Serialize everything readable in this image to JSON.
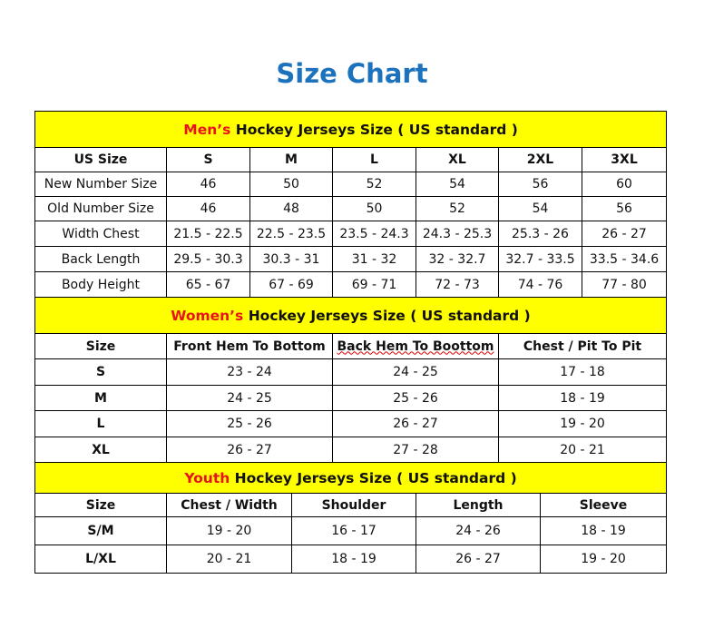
{
  "title": "Size Chart",
  "men": {
    "band_highlight": "Men’s",
    "band_rest": " Hockey Jerseys Size ( US standard )",
    "headers": [
      "US Size",
      "S",
      "M",
      "L",
      "XL",
      "2XL",
      "3XL"
    ],
    "rows": [
      [
        "New Number Size",
        "46",
        "50",
        "52",
        "54",
        "56",
        "60"
      ],
      [
        "Old Number Size",
        "46",
        "48",
        "50",
        "52",
        "54",
        "56"
      ],
      [
        "Width Chest",
        "21.5 - 22.5",
        "22.5 - 23.5",
        "23.5 - 24.3",
        "24.3 - 25.3",
        "25.3 - 26",
        "26 - 27"
      ],
      [
        "Back Length",
        "29.5 - 30.3",
        "30.3 - 31",
        "31 - 32",
        "32 - 32.7",
        "32.7 - 33.5",
        "33.5 - 34.6"
      ],
      [
        "Body Height",
        "65 - 67",
        "67 - 69",
        "69 - 71",
        "72 - 73",
        "74 - 76",
        "77 - 80"
      ]
    ]
  },
  "women": {
    "band_highlight": "Women’s",
    "band_rest": " Hockey Jerseys Size ( US standard )",
    "headers": [
      "Size",
      "Front Hem To Bottom",
      "Back Hem To Boottom",
      "Chest / Pit To Pit"
    ],
    "rows": [
      [
        "S",
        "23 - 24",
        "24 - 25",
        "17 - 18"
      ],
      [
        "M",
        "24 - 25",
        "25 - 26",
        "18 - 19"
      ],
      [
        "L",
        "25 - 26",
        "26 - 27",
        "19 - 20"
      ],
      [
        "XL",
        "26 - 27",
        "27 - 28",
        "20 - 21"
      ]
    ]
  },
  "youth": {
    "band_highlight": "Youth",
    "band_rest": " Hockey Jerseys Size ( US standard )",
    "headers": [
      "Size",
      "Chest / Width",
      "Shoulder",
      "Length",
      "Sleeve"
    ],
    "rows": [
      [
        "S/M",
        "19 - 20",
        "16 - 17",
        "24 - 26",
        "18 - 19"
      ],
      [
        "L/XL",
        "20 - 21",
        "18 - 19",
        "26 - 27",
        "19 - 20"
      ]
    ]
  },
  "colors": {
    "title": "#1c72bd",
    "band": "#ffff00",
    "highlight": "#e8141c"
  }
}
